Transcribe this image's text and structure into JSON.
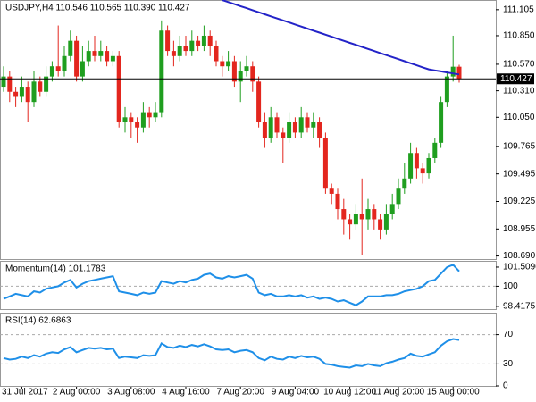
{
  "chart_data": [
    {
      "type": "candlestick",
      "title": "USDJPY,H4  110.546 110.565 110.390 110.427",
      "categories": [
        null,
        null,
        null,
        "31 Jul 2017",
        null,
        null,
        null,
        null,
        null,
        null,
        null,
        null,
        "2 Aug 00:00",
        null,
        null,
        null,
        null,
        null,
        null,
        null,
        null,
        "3 Aug 08:00",
        null,
        null,
        null,
        null,
        null,
        null,
        null,
        null,
        "4 Aug 16:00",
        null,
        null,
        null,
        null,
        null,
        null,
        null,
        null,
        "7 Aug 20:00",
        null,
        null,
        null,
        null,
        null,
        null,
        null,
        null,
        "9 Aug 04:00",
        null,
        null,
        null,
        null,
        null,
        null,
        null,
        null,
        "10 Aug 12:00",
        null,
        null,
        null,
        null,
        null,
        null,
        null,
        "11 Aug 20:00",
        null,
        null,
        null,
        null,
        null,
        null,
        null,
        null,
        "15 Aug 00:00",
        null
      ],
      "open": [
        110.35,
        110.45,
        110.3,
        110.25,
        110.35,
        110.2,
        110.4,
        110.3,
        110.45,
        110.55,
        110.5,
        110.65,
        110.8,
        110.45,
        110.6,
        110.7,
        110.65,
        110.7,
        110.6,
        110.65,
        110.0,
        110.05,
        110.0,
        109.95,
        110.1,
        110.05,
        110.1,
        110.9,
        110.7,
        110.65,
        110.75,
        110.7,
        110.8,
        110.75,
        110.85,
        110.75,
        110.6,
        110.55,
        110.6,
        110.4,
        110.5,
        110.55,
        110.4,
        110.0,
        109.85,
        110.05,
        109.9,
        109.85,
        110.0,
        109.9,
        110.05,
        109.95,
        110.0,
        109.85,
        109.35,
        109.3,
        109.15,
        109.05,
        109.0,
        109.1,
        109.05,
        109.15,
        109.05,
        108.95,
        109.1,
        109.2,
        109.35,
        109.45,
        109.7,
        109.55,
        109.5,
        109.65,
        109.8,
        110.2,
        110.45,
        110.546
      ],
      "high": [
        110.55,
        110.5,
        110.35,
        110.45,
        110.4,
        110.5,
        110.45,
        110.55,
        110.6,
        110.95,
        110.75,
        110.9,
        110.85,
        110.75,
        110.8,
        110.85,
        110.8,
        110.75,
        110.7,
        110.7,
        110.15,
        110.1,
        110.05,
        110.2,
        110.15,
        110.2,
        111.0,
        110.95,
        110.8,
        110.85,
        110.85,
        110.9,
        110.85,
        110.95,
        110.9,
        110.8,
        110.65,
        110.7,
        110.65,
        110.6,
        110.65,
        110.6,
        110.45,
        110.1,
        110.15,
        110.1,
        109.95,
        110.1,
        110.05,
        110.15,
        110.1,
        110.1,
        110.05,
        109.9,
        109.4,
        109.35,
        109.25,
        109.1,
        109.2,
        109.45,
        109.25,
        109.2,
        109.1,
        109.2,
        109.3,
        109.45,
        109.6,
        109.8,
        109.75,
        109.6,
        109.7,
        109.85,
        110.25,
        110.5,
        110.85,
        110.565
      ],
      "low": [
        110.3,
        110.2,
        110.15,
        110.2,
        110.0,
        110.15,
        110.25,
        110.25,
        110.4,
        110.45,
        110.45,
        110.6,
        110.4,
        110.4,
        110.55,
        110.6,
        110.6,
        110.55,
        110.55,
        109.95,
        109.9,
        109.85,
        109.8,
        109.9,
        109.95,
        110.0,
        110.05,
        110.65,
        110.55,
        110.6,
        110.65,
        110.65,
        110.7,
        110.7,
        110.65,
        110.55,
        110.45,
        110.5,
        110.35,
        110.2,
        110.45,
        110.3,
        109.95,
        109.75,
        109.8,
        109.85,
        109.6,
        109.8,
        109.85,
        109.85,
        109.9,
        109.85,
        109.75,
        109.3,
        109.2,
        109.05,
        108.9,
        108.85,
        108.95,
        108.7,
        108.95,
        108.95,
        108.85,
        108.9,
        109.05,
        109.15,
        109.3,
        109.4,
        109.45,
        109.4,
        109.45,
        109.6,
        109.75,
        110.15,
        110.4,
        110.39
      ],
      "close": [
        110.45,
        110.3,
        110.25,
        110.35,
        110.2,
        110.4,
        110.3,
        110.45,
        110.55,
        110.5,
        110.65,
        110.8,
        110.45,
        110.6,
        110.7,
        110.65,
        110.7,
        110.6,
        110.65,
        110.0,
        110.05,
        110.0,
        109.95,
        110.1,
        110.05,
        110.1,
        110.9,
        110.7,
        110.65,
        110.75,
        110.7,
        110.8,
        110.75,
        110.85,
        110.75,
        110.6,
        110.55,
        110.6,
        110.4,
        110.5,
        110.55,
        110.4,
        110.0,
        109.85,
        110.05,
        109.9,
        109.85,
        110.0,
        109.9,
        110.05,
        109.95,
        110.0,
        109.85,
        109.35,
        109.3,
        109.15,
        109.05,
        109.0,
        109.1,
        109.05,
        109.15,
        109.05,
        108.95,
        109.1,
        109.2,
        109.35,
        109.45,
        109.7,
        109.55,
        109.5,
        109.65,
        109.8,
        110.2,
        110.45,
        110.546,
        110.427
      ],
      "up_color": "#1f9e1f",
      "down_color": "#e3261e",
      "ma": {
        "color": "#2323c8",
        "values": [
          null,
          null,
          null,
          null,
          null,
          null,
          null,
          null,
          null,
          null,
          null,
          null,
          null,
          null,
          null,
          null,
          null,
          null,
          null,
          null,
          null,
          null,
          null,
          null,
          null,
          null,
          null,
          null,
          null,
          null,
          null,
          null,
          null,
          null,
          null,
          null,
          111.2,
          111.18,
          111.16,
          111.14,
          111.12,
          111.1,
          111.08,
          111.06,
          111.04,
          111.02,
          111.0,
          110.98,
          110.96,
          110.94,
          110.92,
          110.9,
          110.88,
          110.86,
          110.84,
          110.82,
          110.8,
          110.78,
          110.76,
          110.74,
          110.72,
          110.7,
          110.68,
          110.66,
          110.64,
          110.62,
          110.6,
          110.58,
          110.56,
          110.54,
          110.52,
          110.51,
          110.5,
          110.49,
          110.48,
          110.47
        ]
      },
      "ylim": [
        108.66,
        111.2
      ],
      "yticks": [
        111.105,
        {
          "value": 110.85,
          "label": "110.850"
        },
        {
          "value": 110.57,
          "label": "110.570"
        },
        {
          "value": 110.31,
          "label": "110.310"
        },
        {
          "value": 110.05,
          "label": "110.050"
        },
        109.765,
        109.495,
        109.225,
        108.955,
        {
          "value": 108.69,
          "label": "108.690"
        }
      ]
    },
    {
      "type": "line",
      "title": "Momentum(14) 101.1783",
      "series": [
        {
          "color": "#1e8fe8",
          "values": [
            99.0,
            99.2,
            99.4,
            99.3,
            99.2,
            99.6,
            99.5,
            99.8,
            99.9,
            100.0,
            100.3,
            100.5,
            99.9,
            100.2,
            100.4,
            100.5,
            100.6,
            100.7,
            100.8,
            99.6,
            99.5,
            99.4,
            99.3,
            99.5,
            99.4,
            99.5,
            100.4,
            100.3,
            100.2,
            100.4,
            100.3,
            100.5,
            100.6,
            100.9,
            101.0,
            100.7,
            100.6,
            100.8,
            100.7,
            100.8,
            100.9,
            100.6,
            99.5,
            99.3,
            99.4,
            99.2,
            99.2,
            99.3,
            99.2,
            99.3,
            99.1,
            99.2,
            99.0,
            99.1,
            99.0,
            98.8,
            98.9,
            98.7,
            98.5,
            98.8,
            99.2,
            99.2,
            99.2,
            99.3,
            99.3,
            99.4,
            99.6,
            99.7,
            99.8,
            100.0,
            100.4,
            100.5,
            101.0,
            101.5,
            101.7,
            101.1783
          ]
        }
      ],
      "ylim": [
        98.2,
        102.0
      ],
      "yticks": [
        101.5096,
        100,
        98.4175
      ],
      "levels": [
        100
      ]
    },
    {
      "type": "line",
      "title": "RSI(14) 62.6863",
      "series": [
        {
          "color": "#1e8fe8",
          "values": [
            38,
            36,
            37,
            40,
            38,
            42,
            40,
            44,
            46,
            45,
            50,
            53,
            46,
            49,
            52,
            51,
            52,
            50,
            51,
            38,
            40,
            39,
            38,
            42,
            41,
            42,
            58,
            53,
            52,
            55,
            53,
            56,
            54,
            57,
            54,
            50,
            49,
            50,
            46,
            48,
            49,
            46,
            38,
            35,
            40,
            37,
            36,
            40,
            38,
            41,
            39,
            40,
            37,
            30,
            29,
            27,
            26,
            25,
            28,
            27,
            30,
            28,
            27,
            31,
            33,
            36,
            38,
            44,
            41,
            40,
            43,
            46,
            55,
            61,
            64,
            62.6863
          ]
        }
      ],
      "ylim": [
        0,
        100
      ],
      "yticks": [
        70,
        30,
        0
      ],
      "levels": [
        70,
        30
      ]
    }
  ]
}
